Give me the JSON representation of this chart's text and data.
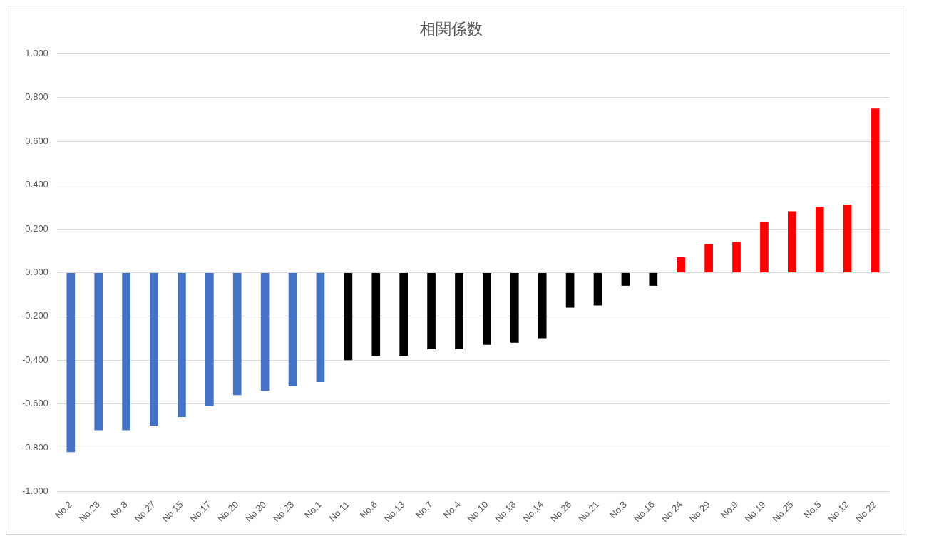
{
  "chart_data": {
    "type": "bar",
    "title": "相関係数",
    "categories": [
      "No.2",
      "No.28",
      "No.8",
      "No.27",
      "No.15",
      "No.17",
      "No.20",
      "No.30",
      "No.23",
      "No.1",
      "No.11",
      "No.6",
      "No.13",
      "No.7",
      "No.4",
      "No.10",
      "No.18",
      "No.14",
      "No.26",
      "No.21",
      "No.3",
      "No.16",
      "No.24",
      "No.29",
      "No.9",
      "No.19",
      "No.25",
      "No.5",
      "No.12",
      "No.22"
    ],
    "values": [
      -0.82,
      -0.72,
      -0.72,
      -0.7,
      -0.66,
      -0.61,
      -0.56,
      -0.54,
      -0.52,
      -0.5,
      -0.4,
      -0.38,
      -0.38,
      -0.35,
      -0.35,
      -0.33,
      -0.32,
      -0.3,
      -0.16,
      -0.15,
      -0.06,
      -0.06,
      0.07,
      0.13,
      0.14,
      0.23,
      0.28,
      0.3,
      0.31,
      0.75
    ],
    "colors": [
      "#4472c4",
      "#4472c4",
      "#4472c4",
      "#4472c4",
      "#4472c4",
      "#4472c4",
      "#4472c4",
      "#4472c4",
      "#4472c4",
      "#4472c4",
      "#000000",
      "#000000",
      "#000000",
      "#000000",
      "#000000",
      "#000000",
      "#000000",
      "#000000",
      "#000000",
      "#000000",
      "#000000",
      "#000000",
      "#ff0000",
      "#ff0000",
      "#ff0000",
      "#ff0000",
      "#ff0000",
      "#ff0000",
      "#ff0000",
      "#ff0000"
    ],
    "ylim": [
      -1,
      1
    ],
    "yticks": [
      {
        "value": -1,
        "label": "-1.000"
      },
      {
        "value": -0.8,
        "label": "-0.800"
      },
      {
        "value": -0.6,
        "label": "-0.600"
      },
      {
        "value": -0.4,
        "label": "-0.400"
      },
      {
        "value": -0.2,
        "label": "-0.200"
      },
      {
        "value": 0,
        "label": "0.000"
      },
      {
        "value": 0.2,
        "label": "0.200"
      },
      {
        "value": 0.4,
        "label": "0.400"
      },
      {
        "value": 0.6,
        "label": "0.600"
      },
      {
        "value": 0.8,
        "label": "0.800"
      },
      {
        "value": 1,
        "label": "1.000"
      }
    ],
    "grid": "y",
    "legend": false
  }
}
